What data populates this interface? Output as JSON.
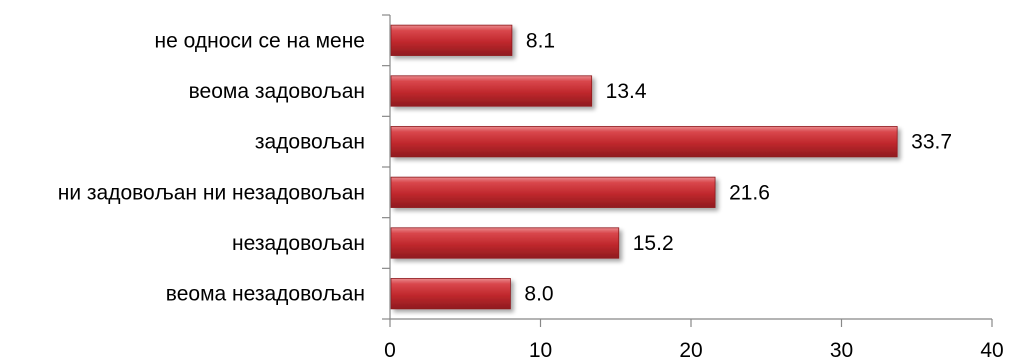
{
  "chart_data": {
    "type": "bar",
    "orientation": "horizontal",
    "categories": [
      "не односи се на мене",
      "веома задовољан",
      "задовољан",
      "ни задовољан ни незадовољан",
      "незадовољан",
      "веома незадовољан"
    ],
    "values": [
      8.1,
      13.4,
      33.7,
      21.6,
      15.2,
      8.0
    ],
    "value_labels": [
      "8.1",
      "13.4",
      "33.7",
      "21.6",
      "15.2",
      "8.0"
    ],
    "xlim": [
      0,
      40
    ],
    "x_ticks": [
      0,
      10,
      20,
      30,
      40
    ],
    "x_tick_labels": [
      "0",
      "10",
      "20",
      "30",
      "40"
    ],
    "title": "",
    "xlabel": "",
    "ylabel": "",
    "grid": false,
    "legend": "none",
    "bar_color": "#c0282d",
    "bar_highlight": "#e8787c",
    "bar_shadow": "#8e1a1e"
  }
}
